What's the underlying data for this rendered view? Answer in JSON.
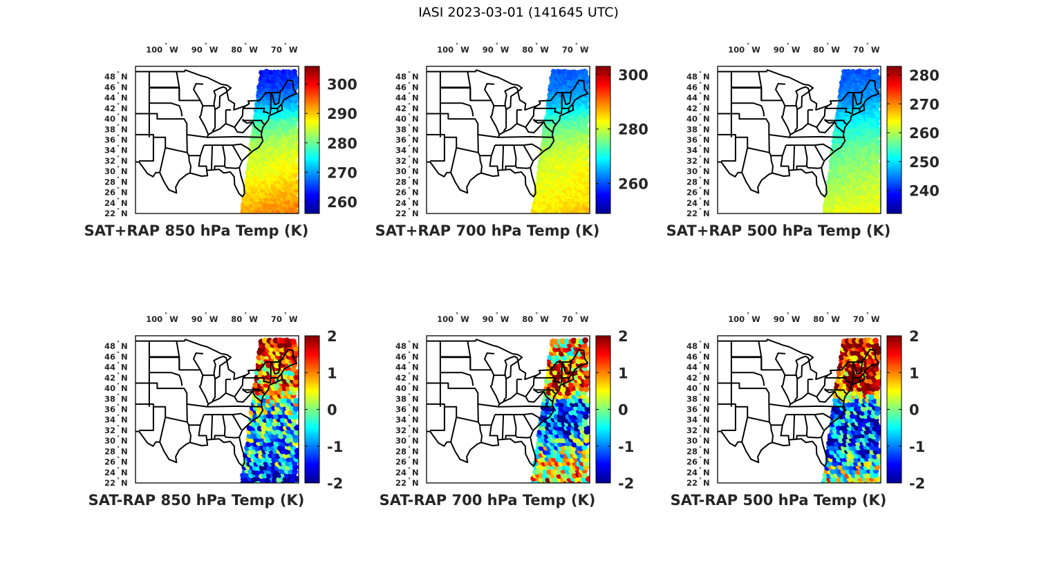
{
  "figure": {
    "title": "IASI 2023-03-01 (141645 UTC)"
  },
  "map_extent": {
    "lon_range": [
      -107.5,
      -66.5
    ],
    "lat_range": [
      22,
      50
    ]
  },
  "lon_ticks": [
    {
      "lon": -100,
      "label": "100",
      "hemi": "W"
    },
    {
      "lon": -90,
      "label": "90",
      "hemi": "W"
    },
    {
      "lon": -80,
      "label": "80",
      "hemi": "W"
    },
    {
      "lon": -70,
      "label": "70",
      "hemi": "W"
    }
  ],
  "lat_ticks": [
    {
      "lat": 48,
      "label": "48",
      "hemi": "N"
    },
    {
      "lat": 46,
      "label": "46",
      "hemi": "N"
    },
    {
      "lat": 44,
      "label": "44",
      "hemi": "N"
    },
    {
      "lat": 42,
      "label": "42",
      "hemi": "N"
    },
    {
      "lat": 40,
      "label": "40",
      "hemi": "N"
    },
    {
      "lat": 38,
      "label": "38",
      "hemi": "N"
    },
    {
      "lat": 36,
      "label": "36",
      "hemi": "N"
    },
    {
      "lat": 34,
      "label": "34",
      "hemi": "N"
    },
    {
      "lat": 32,
      "label": "32",
      "hemi": "N"
    },
    {
      "lat": 30,
      "label": "30",
      "hemi": "N"
    },
    {
      "lat": 28,
      "label": "28",
      "hemi": "N"
    },
    {
      "lat": 26,
      "label": "26",
      "hemi": "N"
    },
    {
      "lat": 24,
      "label": "24",
      "hemi": "N"
    },
    {
      "lat": 22,
      "label": "22",
      "hemi": "N"
    }
  ],
  "chart_data": [
    {
      "type": "scatter",
      "title": "SAT+RAP 850 hPa Temp (K)",
      "colorbar": {
        "range": [
          256,
          306
        ],
        "ticks": [
          260,
          270,
          280,
          290,
          300
        ],
        "tick_labels": [
          "260",
          "270",
          "280",
          "290",
          "300"
        ]
      },
      "swath_profile": [
        {
          "lat": 22,
          "value": 292
        },
        {
          "lat": 26,
          "value": 289
        },
        {
          "lat": 30,
          "value": 286
        },
        {
          "lat": 34,
          "value": 284
        },
        {
          "lat": 37,
          "value": 281
        },
        {
          "lat": 40,
          "value": 277
        },
        {
          "lat": 43,
          "value": 270
        },
        {
          "lat": 46,
          "value": 265
        },
        {
          "lat": 49,
          "value": 263
        }
      ]
    },
    {
      "type": "scatter",
      "title": "SAT+RAP 700 hPa Temp (K)",
      "colorbar": {
        "range": [
          249,
          303
        ],
        "ticks": [
          260,
          280,
          300
        ],
        "tick_labels": [
          "260",
          "280",
          "300"
        ]
      },
      "swath_profile": [
        {
          "lat": 22,
          "value": 284
        },
        {
          "lat": 26,
          "value": 282
        },
        {
          "lat": 30,
          "value": 281
        },
        {
          "lat": 34,
          "value": 279
        },
        {
          "lat": 37,
          "value": 276
        },
        {
          "lat": 40,
          "value": 272
        },
        {
          "lat": 43,
          "value": 266
        },
        {
          "lat": 46,
          "value": 262
        },
        {
          "lat": 49,
          "value": 260
        }
      ]
    },
    {
      "type": "scatter",
      "title": "SAT+RAP 500 hPa Temp (K)",
      "colorbar": {
        "range": [
          232,
          283
        ],
        "ticks": [
          240,
          250,
          260,
          270,
          280
        ],
        "tick_labels": [
          "240",
          "250",
          "260",
          "270",
          "280"
        ]
      },
      "swath_profile": [
        {
          "lat": 22,
          "value": 262
        },
        {
          "lat": 26,
          "value": 260
        },
        {
          "lat": 30,
          "value": 258
        },
        {
          "lat": 34,
          "value": 256
        },
        {
          "lat": 37,
          "value": 253
        },
        {
          "lat": 40,
          "value": 250
        },
        {
          "lat": 43,
          "value": 246
        },
        {
          "lat": 46,
          "value": 244
        },
        {
          "lat": 49,
          "value": 242
        }
      ]
    },
    {
      "type": "scatter",
      "title": "SAT-RAP 850 hPa Temp (K)",
      "colorbar": {
        "range": [
          -2,
          2
        ],
        "ticks": [
          -2,
          -1,
          0,
          1,
          2
        ],
        "tick_labels": [
          "-2",
          "-1",
          "0",
          "1",
          "2"
        ]
      },
      "swath_profile": [
        {
          "lat": 22,
          "value": -1.4
        },
        {
          "lat": 26,
          "value": -0.8
        },
        {
          "lat": 30,
          "value": -0.6
        },
        {
          "lat": 34,
          "value": -0.7
        },
        {
          "lat": 37,
          "value": -0.2
        },
        {
          "lat": 40,
          "value": 1.2
        },
        {
          "lat": 43,
          "value": 0.8
        },
        {
          "lat": 46,
          "value": 1.4
        },
        {
          "lat": 49,
          "value": 1.6
        }
      ]
    },
    {
      "type": "scatter",
      "title": "SAT-RAP 700 hPa Temp (K)",
      "colorbar": {
        "range": [
          -2,
          2
        ],
        "ticks": [
          -2,
          -1,
          0,
          1,
          2
        ],
        "tick_labels": [
          "-2",
          "-1",
          "0",
          "1",
          "2"
        ]
      },
      "swath_profile": [
        {
          "lat": 22,
          "value": 0.8
        },
        {
          "lat": 26,
          "value": 0.3
        },
        {
          "lat": 30,
          "value": -0.6
        },
        {
          "lat": 34,
          "value": -1.4
        },
        {
          "lat": 37,
          "value": -1.6
        },
        {
          "lat": 40,
          "value": 1.4
        },
        {
          "lat": 43,
          "value": 1.2
        },
        {
          "lat": 46,
          "value": 0.6
        },
        {
          "lat": 49,
          "value": 0.9
        }
      ]
    },
    {
      "type": "scatter",
      "title": "SAT-RAP 500 hPa Temp (K)",
      "colorbar": {
        "range": [
          -2,
          2
        ],
        "ticks": [
          -2,
          -1,
          0,
          1,
          2
        ],
        "tick_labels": [
          "-2",
          "-1",
          "0",
          "1",
          "2"
        ]
      },
      "swath_profile": [
        {
          "lat": 22,
          "value": 0.6
        },
        {
          "lat": 26,
          "value": -0.6
        },
        {
          "lat": 30,
          "value": -1.2
        },
        {
          "lat": 34,
          "value": -1.3
        },
        {
          "lat": 37,
          "value": -1.0
        },
        {
          "lat": 40,
          "value": 1.8
        },
        {
          "lat": 43,
          "value": 1.4
        },
        {
          "lat": 46,
          "value": 1.7
        },
        {
          "lat": 49,
          "value": 1.8
        }
      ]
    }
  ]
}
